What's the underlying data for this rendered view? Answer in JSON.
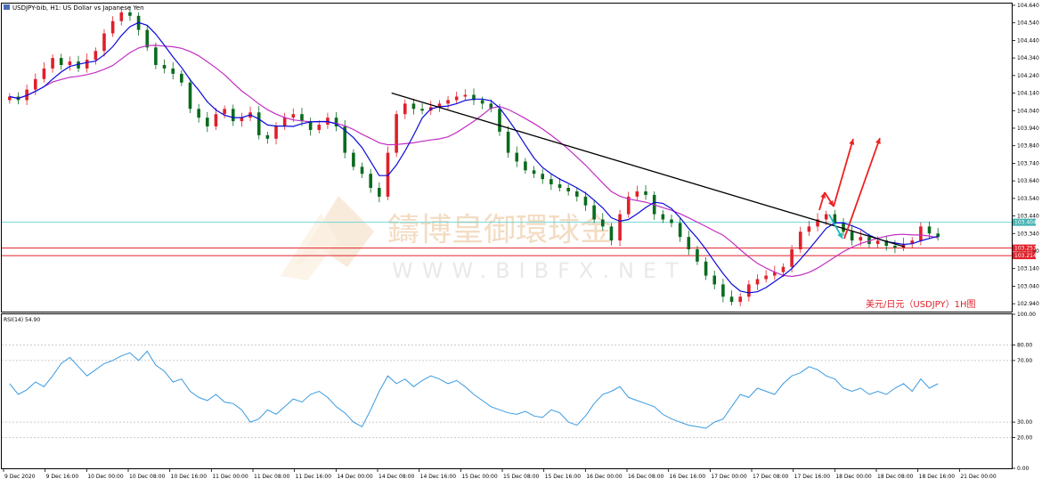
{
  "header": {
    "symbol_title": "USDJPY-bib, H1:  US Dollar vs Japanese Yen"
  },
  "annotation": {
    "text": "美元/日元（USDJPY）1H图"
  },
  "watermark": {
    "text": "鑄博皇御環球金",
    "sub_text": "WWW.BIBFX.NET"
  },
  "colors": {
    "bull_candle": "#e0202a",
    "bear_candle": "#0a6b1e",
    "fast_ma": "#0a0ad8",
    "slow_ma": "#c22ec2",
    "rsi_line": "#3a9be0",
    "trendline": "#000000",
    "horizontal_cyan": "#6fd6d6",
    "horizontal_red": "#e0202a",
    "arrow_red": "#ee2020",
    "arrow_cyan": "#18b8b8"
  },
  "chart_data": [
    {
      "type": "candlestick",
      "title": "",
      "price_axis_ticks": [
        "104.640",
        "104.540",
        "104.440",
        "104.340",
        "104.240",
        "104.140",
        "104.040",
        "103.940",
        "103.840",
        "103.740",
        "103.640",
        "103.540",
        "103.440",
        "103.340",
        "103.240",
        "103.140",
        "103.040",
        "102.940"
      ],
      "ylim": [
        102.895,
        104.65
      ],
      "price_labels": {
        "current": "103.404",
        "red_upper": "103.257",
        "red_lower": "103.214"
      },
      "horizontal_lines": [
        {
          "name": "cyan-level",
          "value": 103.404
        },
        {
          "name": "red-level-upper",
          "value": 103.257
        },
        {
          "name": "red-level-lower",
          "value": 103.214
        }
      ],
      "trendline": {
        "from": [
          0.386,
          104.14
        ],
        "to": [
          0.894,
          103.264
        ]
      },
      "close_series": [
        104.12,
        104.1,
        104.16,
        104.22,
        104.28,
        104.34,
        104.3,
        104.32,
        104.28,
        104.33,
        104.38,
        104.48,
        104.55,
        104.6,
        104.58,
        104.5,
        104.4,
        104.3,
        104.28,
        104.25,
        104.2,
        104.05,
        104.0,
        103.95,
        104.02,
        104.05,
        103.98,
        104.0,
        104.03,
        103.9,
        103.88,
        103.95,
        104.0,
        104.02,
        103.98,
        103.93,
        103.96,
        104.0,
        103.95,
        103.8,
        103.72,
        103.68,
        103.6,
        103.55,
        103.8,
        104.02,
        104.08,
        104.05,
        104.04,
        104.06,
        104.08,
        104.1,
        104.12,
        104.13,
        104.1,
        104.08,
        104.05,
        103.92,
        103.8,
        103.75,
        103.7,
        103.68,
        103.65,
        103.62,
        103.6,
        103.58,
        103.55,
        103.5,
        103.42,
        103.38,
        103.3,
        103.45,
        103.55,
        103.58,
        103.56,
        103.45,
        103.42,
        103.4,
        103.32,
        103.25,
        103.18,
        103.1,
        103.05,
        102.98,
        102.95,
        102.98,
        103.05,
        103.08,
        103.1,
        103.12,
        103.15,
        103.25,
        103.35,
        103.38,
        103.42,
        103.45,
        103.4,
        103.35,
        103.3,
        103.32,
        103.28,
        103.3,
        103.27,
        103.26,
        103.28,
        103.3,
        103.38,
        103.34,
        103.32
      ],
      "x_tick_labels": [
        "9 Dec 2020",
        "9 Dec 16:00",
        "10 Dec 00:00",
        "10 Dec 08:00",
        "10 Dec 16:00",
        "11 Dec 00:00",
        "11 Dec 08:00",
        "11 Dec 16:00",
        "14 Dec 00:00",
        "14 Dec 08:00",
        "14 Dec 16:00",
        "15 Dec 00:00",
        "15 Dec 08:00",
        "15 Dec 16:00",
        "16 Dec 00:00",
        "16 Dec 08:00",
        "16 Dec 16:00",
        "17 Dec 00:00",
        "17 Dec 08:00",
        "17 Dec 16:00",
        "18 Dec 00:00",
        "18 Dec 08:00",
        "18 Dec 16:00",
        "21 Dec 00:00"
      ]
    },
    {
      "type": "line",
      "title": "RSI(14) 54.90",
      "ylim": [
        0,
        100
      ],
      "y_ticks": [
        "100.00",
        "80.00",
        "70.00",
        "30.00",
        "20.00",
        "0.00"
      ],
      "levels": [
        80,
        70,
        30,
        20
      ],
      "values": [
        55,
        48,
        51,
        56,
        53,
        60,
        68,
        72,
        66,
        60,
        64,
        68,
        70,
        73,
        75,
        70,
        76,
        67,
        63,
        56,
        58,
        50,
        46,
        44,
        48,
        43,
        42,
        38,
        30,
        32,
        38,
        35,
        40,
        45,
        43,
        48,
        50,
        46,
        40,
        36,
        30,
        27,
        38,
        50,
        60,
        55,
        58,
        53,
        57,
        60,
        58,
        55,
        57,
        53,
        48,
        44,
        40,
        38,
        36,
        35,
        37,
        34,
        33,
        38,
        36,
        30,
        28,
        34,
        42,
        48,
        50,
        53,
        46,
        44,
        42,
        40,
        35,
        32,
        30,
        28,
        27,
        26,
        30,
        32,
        40,
        48,
        46,
        52,
        50,
        48,
        55,
        60,
        62,
        66,
        64,
        60,
        58,
        52,
        50,
        52,
        48,
        50,
        48,
        52,
        55,
        50,
        58,
        52,
        54.9
      ]
    }
  ]
}
